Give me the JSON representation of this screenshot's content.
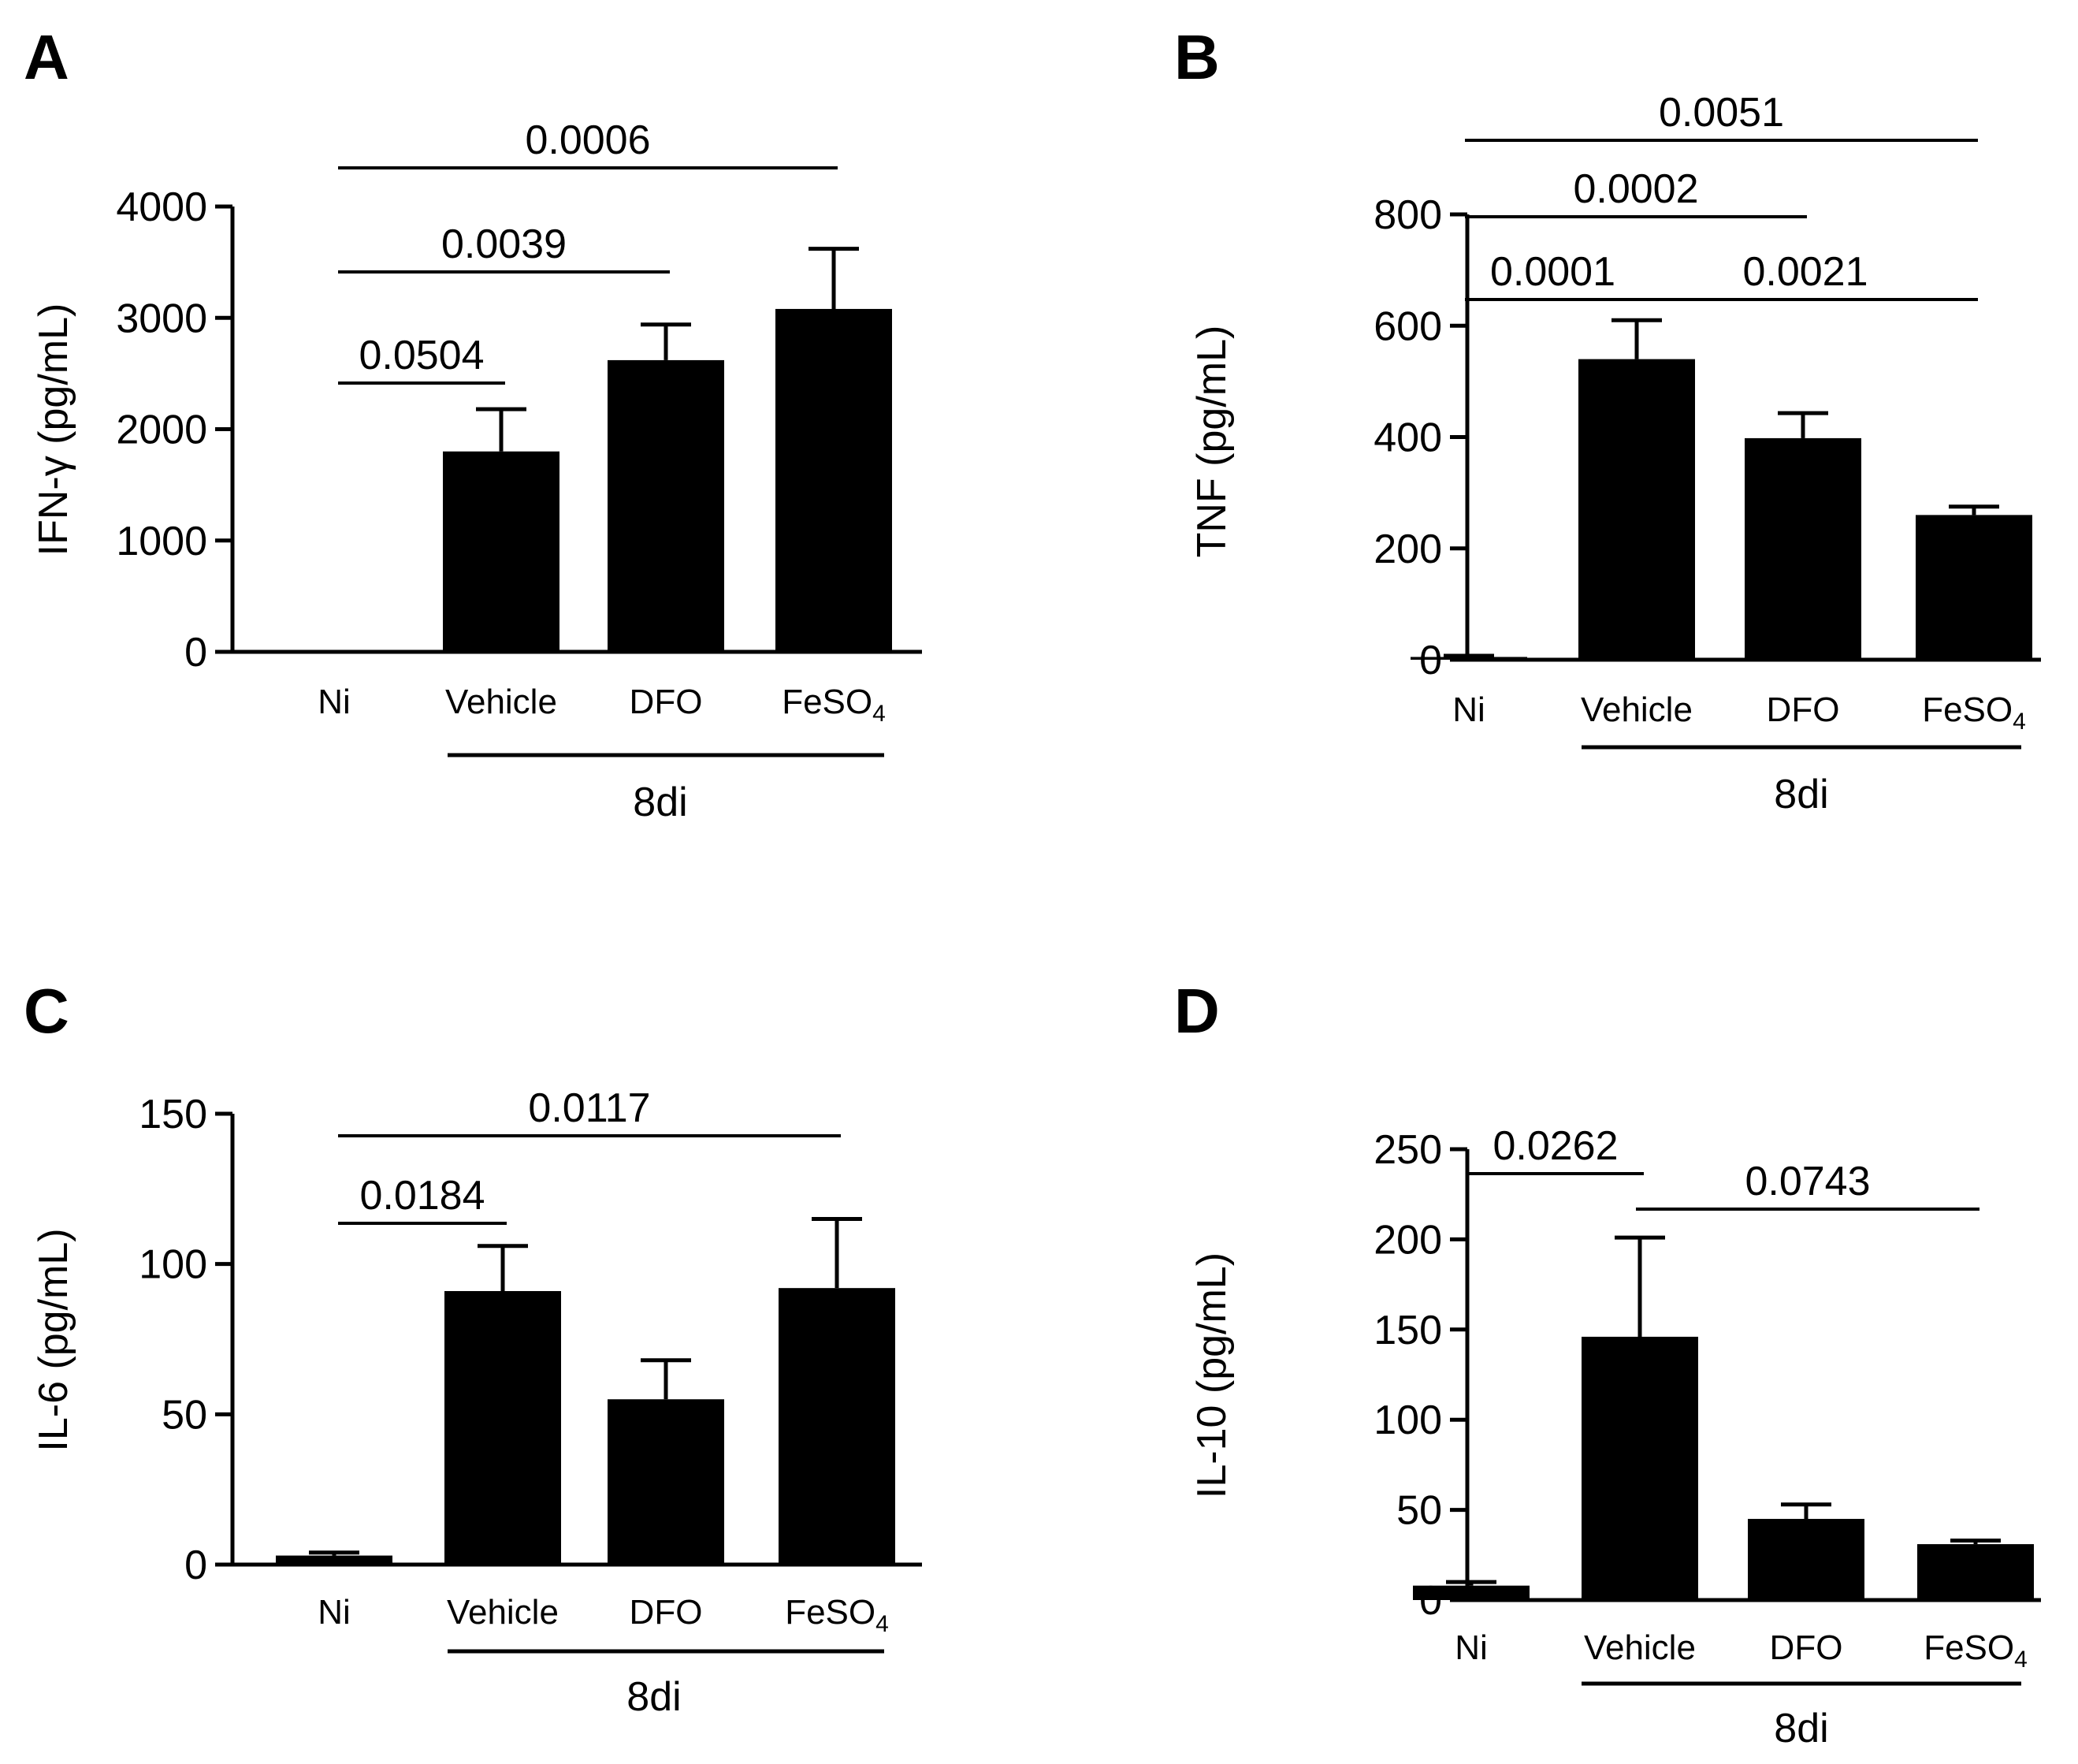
{
  "chart_data": [
    {
      "panel": "A",
      "type": "bar",
      "ylabel": "IFN-γ (pg/mL)",
      "categories": [
        "Ni",
        "Vehicle",
        "DFO",
        "FeSO4"
      ],
      "values": [
        0,
        1800,
        2620,
        3080
      ],
      "errors": [
        0,
        380,
        320,
        540
      ],
      "ylim": [
        0,
        4000
      ],
      "yticks": [
        "0",
        "1000",
        "2000",
        "3000",
        "4000"
      ],
      "group_label": "8di",
      "comparisons": [
        {
          "from": 0,
          "to": 1,
          "label": "0.0504"
        },
        {
          "from": 0,
          "to": 2,
          "label": "0.0039"
        },
        {
          "from": 0,
          "to": 3,
          "label": "0.0006"
        }
      ]
    },
    {
      "panel": "B",
      "type": "bar",
      "ylabel": "TNF (pg/mL)",
      "categories": [
        "Ni",
        "Vehicle",
        "DFO",
        "FeSO4"
      ],
      "values": [
        5,
        540,
        398,
        260
      ],
      "errors": [
        2,
        70,
        45,
        15
      ],
      "ylim": [
        0,
        800
      ],
      "yticks": [
        "0",
        "200",
        "400",
        "600",
        "800"
      ],
      "group_label": "8di",
      "comparisons": [
        {
          "from": 0,
          "to": 1,
          "label": "0.0001"
        },
        {
          "from": 1,
          "to": 3,
          "label": "0.0021"
        },
        {
          "from": 0,
          "to": 2,
          "label": "0.0002"
        },
        {
          "from": 0,
          "to": 3,
          "label": "0.0051"
        }
      ]
    },
    {
      "panel": "C",
      "type": "bar",
      "ylabel": "IL-6 (pg/mL)",
      "categories": [
        "Ni",
        "Vehicle",
        "DFO",
        "FeSO4"
      ],
      "values": [
        3,
        91,
        55,
        92
      ],
      "errors": [
        1,
        15,
        13,
        23
      ],
      "ylim": [
        0,
        150
      ],
      "yticks": [
        "0",
        "50",
        "100",
        "150"
      ],
      "group_label": "8di",
      "comparisons": [
        {
          "from": 0,
          "to": 1,
          "label": "0.0184"
        },
        {
          "from": 0,
          "to": 3,
          "label": "0.0117"
        }
      ]
    },
    {
      "panel": "D",
      "type": "bar",
      "ylabel": "IL-10 (pg/mL)",
      "categories": [
        "Ni",
        "Vehicle",
        "DFO",
        "FeSO4"
      ],
      "values": [
        8,
        146,
        45,
        31
      ],
      "errors": [
        2,
        55,
        8,
        2
      ],
      "ylim": [
        0,
        250
      ],
      "yticks": [
        "0",
        "50",
        "100",
        "150",
        "200",
        "250"
      ],
      "group_label": "8di",
      "comparisons": [
        {
          "from": 0,
          "to": 1,
          "label": "0.0262"
        },
        {
          "from": 1,
          "to": 3,
          "label": "0.0743"
        }
      ]
    }
  ]
}
